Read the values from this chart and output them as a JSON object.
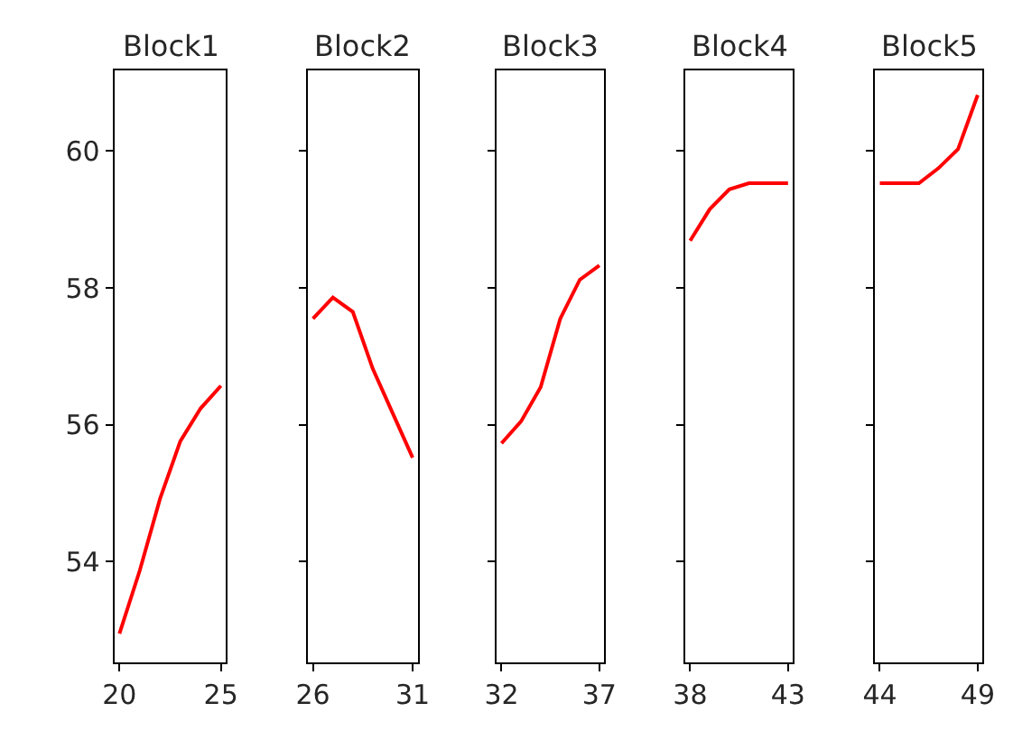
{
  "chart_data": [
    {
      "type": "line",
      "title": "Block1",
      "x": [
        20,
        21,
        22,
        23,
        24,
        25
      ],
      "series": [
        {
          "color": "#ff0000",
          "values": [
            52.95,
            53.87,
            54.92,
            55.76,
            56.24,
            56.57
          ]
        }
      ],
      "xlim": [
        19.75,
        25.25
      ],
      "xticks": [
        20,
        25
      ],
      "ylim": [
        52.53,
        61.18
      ],
      "yticks": [
        54,
        56,
        58,
        60
      ]
    },
    {
      "type": "line",
      "title": "Block2",
      "x": [
        26,
        27,
        28,
        29,
        30,
        31
      ],
      "series": [
        {
          "color": "#ff0000",
          "values": [
            57.55,
            57.86,
            57.65,
            56.82,
            56.17,
            55.52
          ]
        }
      ],
      "xlim": [
        25.75,
        31.25
      ],
      "xticks": [
        26,
        31
      ],
      "ylim": [
        52.53,
        61.18
      ],
      "yticks": [
        {
          "value": 54,
          "label": null
        },
        {
          "value": 56,
          "label": null
        },
        {
          "value": 58,
          "label": null
        },
        {
          "value": 60,
          "label": null
        }
      ],
      "tick_labels": "x"
    },
    {
      "type": "line",
      "title": "Block3",
      "x": [
        32,
        33,
        34,
        35,
        36,
        37
      ],
      "series": [
        {
          "color": "#ff0000",
          "values": [
            55.73,
            56.05,
            56.55,
            57.55,
            58.12,
            58.33
          ]
        }
      ],
      "xlim": [
        31.75,
        37.25
      ],
      "xticks": [
        32,
        37
      ],
      "ylim": [
        52.53,
        61.18
      ],
      "yticks": [
        {
          "value": 54,
          "label": null
        },
        {
          "value": 56,
          "label": null
        },
        {
          "value": 58,
          "label": null
        },
        {
          "value": 60,
          "label": null
        }
      ],
      "tick_labels": "x"
    },
    {
      "type": "line",
      "title": "Block4",
      "x": [
        38,
        39,
        40,
        41,
        42,
        43
      ],
      "series": [
        {
          "color": "#ff0000",
          "values": [
            58.69,
            59.15,
            59.44,
            59.53,
            59.53,
            59.53
          ]
        }
      ],
      "xlim": [
        37.75,
        43.25
      ],
      "xticks": [
        38,
        43
      ],
      "ylim": [
        52.53,
        61.18
      ],
      "yticks": [
        {
          "value": 54,
          "label": null
        },
        {
          "value": 56,
          "label": null
        },
        {
          "value": 58,
          "label": null
        },
        {
          "value": 60,
          "label": null
        }
      ],
      "tick_labels": "x"
    },
    {
      "type": "line",
      "title": "Block5",
      "x": [
        44,
        45,
        46,
        47,
        48,
        49
      ],
      "series": [
        {
          "color": "#ff0000",
          "values": [
            59.53,
            59.53,
            59.53,
            59.75,
            60.03,
            60.82
          ]
        }
      ],
      "xlim": [
        43.75,
        49.25
      ],
      "xticks": [
        44,
        49
      ],
      "ylim": [
        52.53,
        61.18
      ],
      "yticks": [
        {
          "value": 54,
          "label": null
        },
        {
          "value": 56,
          "label": null
        },
        {
          "value": 58,
          "label": null
        },
        {
          "value": 60,
          "label": null
        }
      ],
      "tick_labels": "x"
    }
  ]
}
